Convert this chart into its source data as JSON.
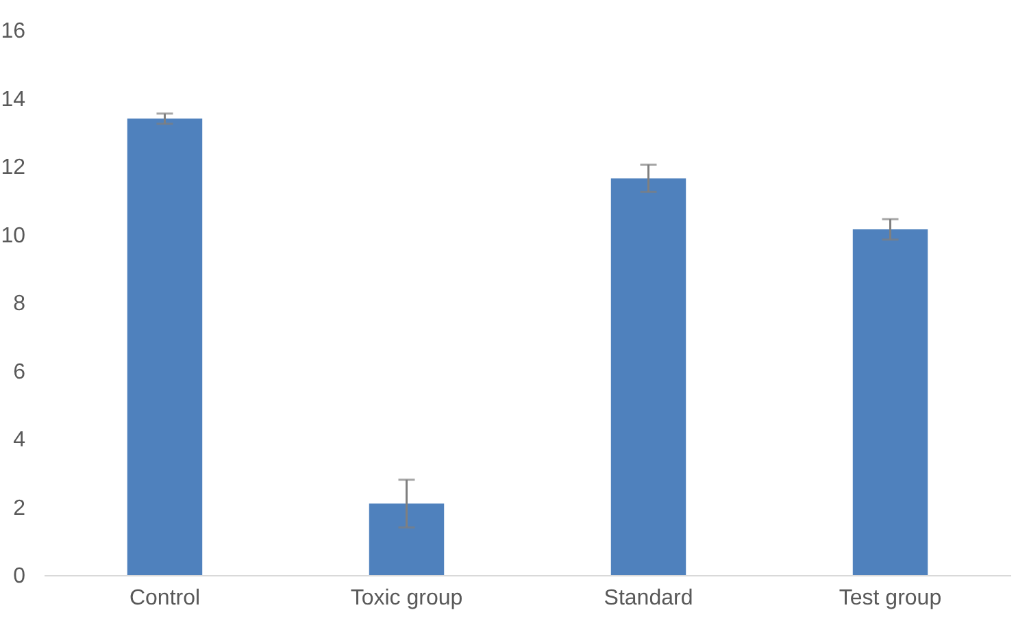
{
  "chart_data": {
    "type": "bar",
    "categories": [
      "Control",
      "Toxic group",
      "Standard",
      "Test group"
    ],
    "values": [
      13.4,
      2.1,
      11.65,
      10.15
    ],
    "errors": [
      0.15,
      0.7,
      0.4,
      0.3
    ],
    "color": "#4f81bd",
    "ylim": [
      0,
      16
    ],
    "yticks": [
      0,
      2,
      4,
      6,
      8,
      10,
      12,
      14,
      16
    ],
    "grid": false
  }
}
